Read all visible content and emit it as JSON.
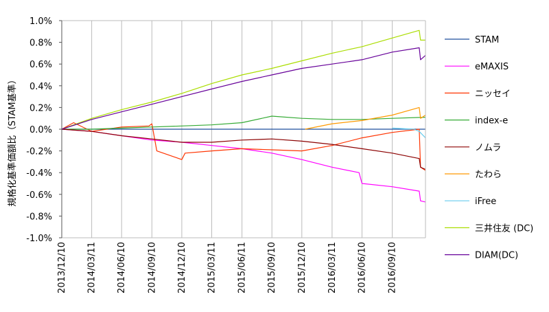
{
  "chart_data": {
    "type": "line",
    "ylabel": "規格化基準価額比（STAM基準）",
    "y_ticks": [
      "1.0%",
      "0.8%",
      "0.6%",
      "0.4%",
      "0.2%",
      "0.0%",
      "-0.2%",
      "-0.4%",
      "-0.6%",
      "-0.8%",
      "-1.0%"
    ],
    "ylim": [
      -1.0,
      1.0
    ],
    "y_unit": "%",
    "x_ticks": [
      "2013/12/10",
      "2014/03/11",
      "2014/06/10",
      "2014/09/10",
      "2014/12/10",
      "2015/03/11",
      "2015/06/11",
      "2015/09/10",
      "2015/12/10",
      "2016/03/11",
      "2016/06/10",
      "2016/09/10"
    ],
    "xlim": [
      "2013-12-10",
      "2016-12-20"
    ],
    "grid": {
      "vertical": true,
      "horizontal": false
    },
    "legend_position": "right",
    "series": [
      {
        "name": "STAM",
        "color": "#1f4e9c",
        "points": [
          [
            "2013-12-10",
            0.0
          ],
          [
            "2016-12-20",
            0.0
          ]
        ]
      },
      {
        "name": "eMAXIS",
        "color": "#ff00ff",
        "points": [
          [
            "2013-12-10",
            0.0
          ],
          [
            "2014-03-11",
            -0.02
          ],
          [
            "2014-06-10",
            -0.06
          ],
          [
            "2014-09-10",
            -0.1
          ],
          [
            "2014-12-10",
            -0.12
          ],
          [
            "2015-03-11",
            -0.15
          ],
          [
            "2015-06-11",
            -0.18
          ],
          [
            "2015-09-10",
            -0.22
          ],
          [
            "2015-12-10",
            -0.28
          ],
          [
            "2016-03-11",
            -0.35
          ],
          [
            "2016-06-01",
            -0.4
          ],
          [
            "2016-06-10",
            -0.5
          ],
          [
            "2016-09-10",
            -0.53
          ],
          [
            "2016-12-01",
            -0.57
          ],
          [
            "2016-12-05",
            -0.66
          ],
          [
            "2016-12-20",
            -0.67
          ]
        ]
      },
      {
        "name": "ニッセイ",
        "color": "#ff3300",
        "points": [
          [
            "2013-12-10",
            0.0
          ],
          [
            "2014-01-15",
            0.06
          ],
          [
            "2014-03-11",
            -0.02
          ],
          [
            "2014-06-10",
            0.02
          ],
          [
            "2014-09-01",
            0.03
          ],
          [
            "2014-09-10",
            0.05
          ],
          [
            "2014-09-25",
            -0.2
          ],
          [
            "2014-12-10",
            -0.28
          ],
          [
            "2014-12-20",
            -0.22
          ],
          [
            "2015-03-11",
            -0.2
          ],
          [
            "2015-06-11",
            -0.18
          ],
          [
            "2015-09-10",
            -0.19
          ],
          [
            "2015-12-10",
            -0.2
          ],
          [
            "2016-03-11",
            -0.15
          ],
          [
            "2016-06-10",
            -0.08
          ],
          [
            "2016-09-10",
            -0.03
          ],
          [
            "2016-12-01",
            0.0
          ],
          [
            "2016-12-05",
            -0.35
          ],
          [
            "2016-12-20",
            -0.38
          ]
        ]
      },
      {
        "name": "index-e",
        "color": "#33aa33",
        "points": [
          [
            "2013-12-10",
            0.0
          ],
          [
            "2014-03-11",
            0.0
          ],
          [
            "2014-06-10",
            0.01
          ],
          [
            "2014-09-10",
            0.02
          ],
          [
            "2014-12-10",
            0.03
          ],
          [
            "2015-03-11",
            0.04
          ],
          [
            "2015-06-11",
            0.06
          ],
          [
            "2015-09-10",
            0.12
          ],
          [
            "2015-12-10",
            0.1
          ],
          [
            "2016-03-11",
            0.09
          ],
          [
            "2016-06-10",
            0.09
          ],
          [
            "2016-09-10",
            0.1
          ],
          [
            "2016-12-20",
            0.11
          ]
        ]
      },
      {
        "name": "ノムラ",
        "color": "#8b0000",
        "points": [
          [
            "2013-12-10",
            0.0
          ],
          [
            "2014-03-11",
            -0.02
          ],
          [
            "2014-06-10",
            -0.06
          ],
          [
            "2014-09-10",
            -0.09
          ],
          [
            "2014-12-10",
            -0.12
          ],
          [
            "2015-03-11",
            -0.12
          ],
          [
            "2015-06-11",
            -0.1
          ],
          [
            "2015-09-10",
            -0.09
          ],
          [
            "2015-12-10",
            -0.11
          ],
          [
            "2016-03-11",
            -0.14
          ],
          [
            "2016-06-10",
            -0.18
          ],
          [
            "2016-09-10",
            -0.22
          ],
          [
            "2016-12-01",
            -0.27
          ],
          [
            "2016-12-05",
            -0.35
          ],
          [
            "2016-12-20",
            -0.37
          ]
        ]
      },
      {
        "name": "たわら",
        "color": "#ff9900",
        "points": [
          [
            "2015-12-20",
            0.0
          ],
          [
            "2016-03-11",
            0.05
          ],
          [
            "2016-06-10",
            0.08
          ],
          [
            "2016-09-10",
            0.13
          ],
          [
            "2016-12-01",
            0.2
          ],
          [
            "2016-12-05",
            0.1
          ],
          [
            "2016-12-20",
            0.13
          ]
        ]
      },
      {
        "name": "iFree",
        "color": "#66ccee",
        "points": [
          [
            "2016-09-10",
            0.01
          ],
          [
            "2016-11-15",
            0.0
          ],
          [
            "2016-12-01",
            -0.02
          ],
          [
            "2016-12-20",
            -0.08
          ]
        ]
      },
      {
        "name": "三井住友 (DC)",
        "color": "#aadd00",
        "points": [
          [
            "2013-12-10",
            0.0
          ],
          [
            "2014-03-11",
            0.1
          ],
          [
            "2014-06-10",
            0.18
          ],
          [
            "2014-09-10",
            0.25
          ],
          [
            "2014-12-10",
            0.33
          ],
          [
            "2015-03-11",
            0.42
          ],
          [
            "2015-06-11",
            0.5
          ],
          [
            "2015-09-10",
            0.56
          ],
          [
            "2015-12-10",
            0.63
          ],
          [
            "2016-03-11",
            0.7
          ],
          [
            "2016-06-10",
            0.76
          ],
          [
            "2016-09-10",
            0.84
          ],
          [
            "2016-12-01",
            0.91
          ],
          [
            "2016-12-05",
            0.82
          ],
          [
            "2016-12-20",
            0.82
          ]
        ]
      },
      {
        "name": "DIAM(DC)",
        "color": "#660099",
        "points": [
          [
            "2013-12-10",
            0.0
          ],
          [
            "2014-03-11",
            0.09
          ],
          [
            "2014-06-10",
            0.16
          ],
          [
            "2014-09-10",
            0.23
          ],
          [
            "2014-12-10",
            0.3
          ],
          [
            "2015-03-11",
            0.37
          ],
          [
            "2015-06-11",
            0.44
          ],
          [
            "2015-09-10",
            0.5
          ],
          [
            "2015-12-10",
            0.56
          ],
          [
            "2016-03-11",
            0.6
          ],
          [
            "2016-06-10",
            0.64
          ],
          [
            "2016-09-10",
            0.71
          ],
          [
            "2016-12-01",
            0.75
          ],
          [
            "2016-12-05",
            0.64
          ],
          [
            "2016-12-20",
            0.68
          ]
        ]
      }
    ]
  }
}
